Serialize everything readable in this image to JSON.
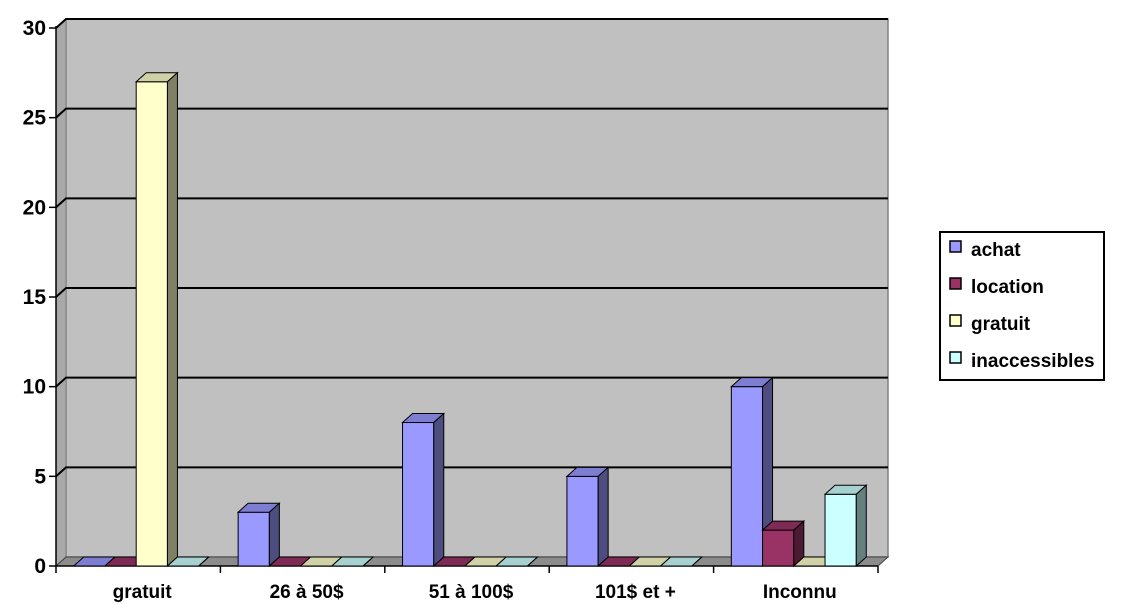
{
  "chart_data": {
    "type": "bar",
    "title": "",
    "xlabel": "",
    "ylabel": "",
    "categories": [
      "gratuit",
      "26 à 50$",
      "51 à 100$",
      "101$ et +",
      "Inconnu"
    ],
    "series": [
      {
        "name": "achat",
        "color": "#9999FF",
        "values": [
          0,
          3,
          8,
          5,
          10
        ]
      },
      {
        "name": "location",
        "color": "#993366",
        "values": [
          0,
          0,
          0,
          0,
          2
        ]
      },
      {
        "name": "gratuit",
        "color": "#FFFFCC",
        "values": [
          27,
          0,
          0,
          0,
          0
        ]
      },
      {
        "name": "inaccessibles",
        "color": "#CCFFFF",
        "values": [
          0,
          0,
          0,
          0,
          4
        ]
      }
    ],
    "ylim": [
      0,
      30
    ],
    "yticks": [
      0,
      5,
      10,
      15,
      20,
      25,
      30
    ],
    "grid": true,
    "legend_position": "right",
    "plot_background": "#C0C0C0",
    "three_d": true
  }
}
